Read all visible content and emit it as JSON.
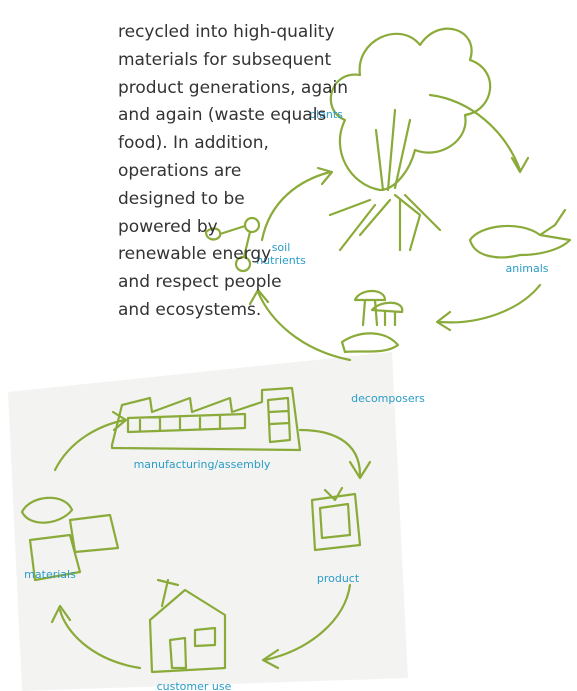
{
  "text": {
    "lines": [
      "recycled into high-quality",
      "materials for subsequent",
      "product generations, again",
      "and again (waste equals",
      "food). In addition,",
      "operations are",
      "designed to be",
      "powered by",
      "renewable energy",
      "and respect people",
      "and ecosystems."
    ]
  },
  "biological_cycle": {
    "nodes": [
      {
        "label": [
          "plants"
        ]
      },
      {
        "label": [
          "animals"
        ]
      },
      {
        "label": [
          "decomposers"
        ]
      },
      {
        "label": [
          "soil",
          "nutrients"
        ]
      }
    ]
  },
  "technical_cycle": {
    "nodes": [
      {
        "label": [
          "manufacturing/assembly"
        ]
      },
      {
        "label": [
          "product"
        ]
      },
      {
        "label": [
          "customer use"
        ]
      },
      {
        "label": [
          "materials"
        ]
      }
    ]
  }
}
